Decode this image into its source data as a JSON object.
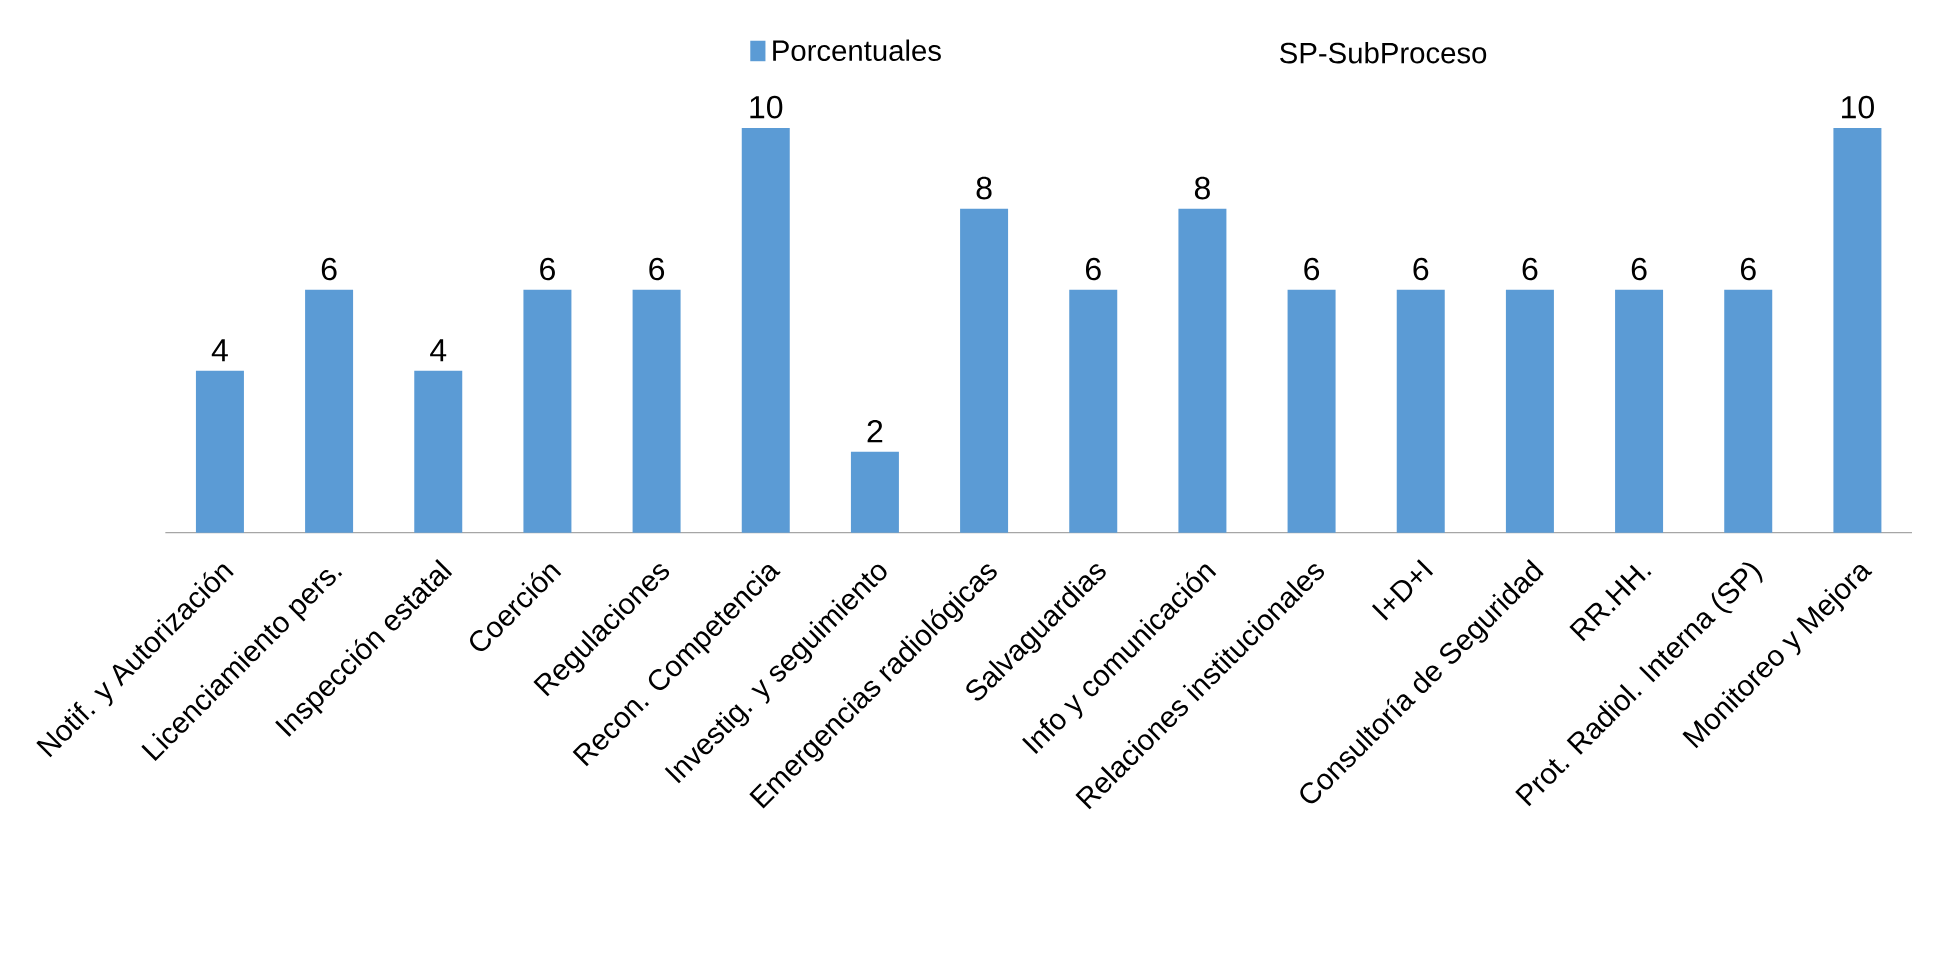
{
  "chart_data": {
    "type": "bar",
    "categories": [
      "Notif. y Autorización",
      "Licenciamiento pers.",
      "Inspección estatal",
      "Coerción",
      "Regulaciones",
      "Recon. Competencia",
      "Investig. y seguimiento",
      "Emergencias radiológicas",
      "Salvaguardias",
      "Info y comunicación",
      "Relaciones institucionales",
      "I+D+I",
      "Consultoría de Seguridad",
      "RR.HH.",
      "Prot. Radiol. Interna (SP)",
      "Monitoreo y Mejora"
    ],
    "series": [
      {
        "name": "Porcentuales",
        "color": "#5b9bd5",
        "values": [
          4,
          6,
          4,
          6,
          6,
          10,
          2,
          8,
          6,
          8,
          6,
          6,
          6,
          6,
          6,
          10
        ]
      }
    ],
    "data_labels": true,
    "legend": "top",
    "annotations": [
      "SP-SubProceso"
    ]
  }
}
